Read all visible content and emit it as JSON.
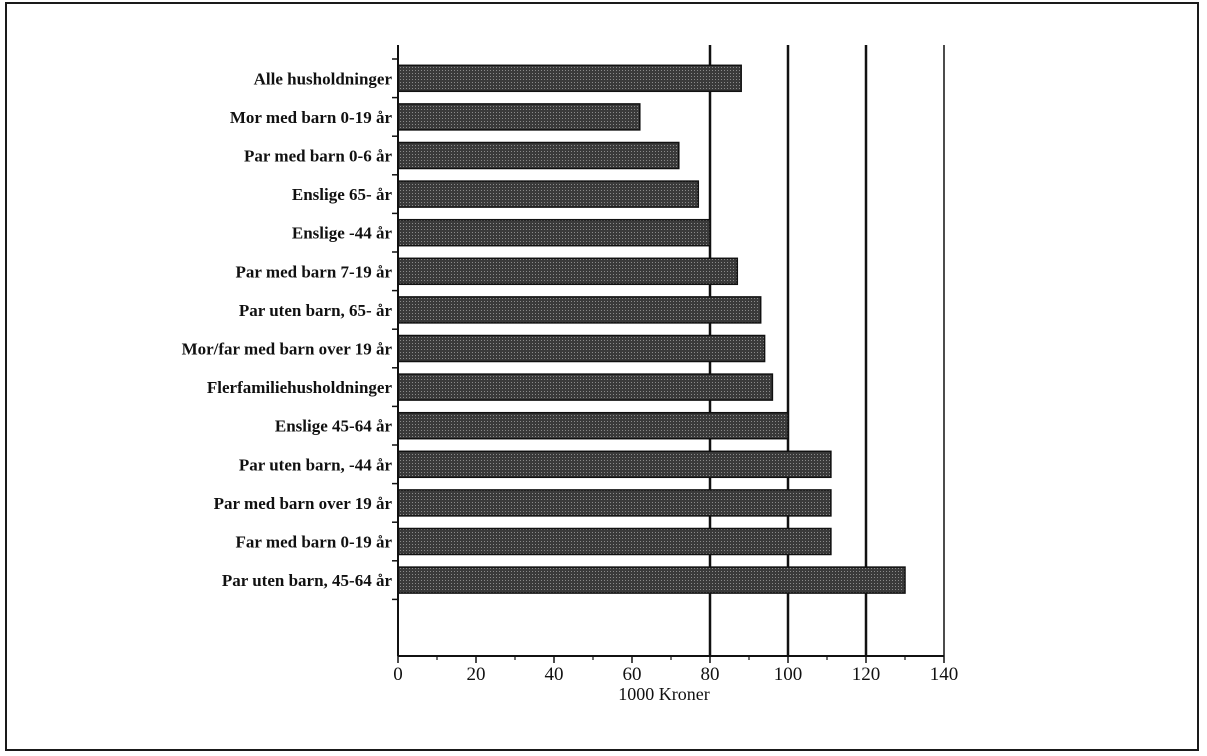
{
  "chart_data": {
    "type": "bar",
    "orientation": "horizontal",
    "title": "",
    "xlabel": "1000 Kroner",
    "ylabel": "",
    "xlim": [
      0,
      140
    ],
    "xticks": [
      0,
      20,
      40,
      60,
      80,
      100,
      120,
      140
    ],
    "categories": [
      "Alle husholdninger",
      "Mor med barn 0-19 år",
      "Par med barn 0-6 år",
      "Enslige 65- år",
      "Enslige -44 år",
      "Par med barn 7-19 år",
      "Par uten barn, 65- år",
      "Mor/far med barn over 19 år",
      "Flerfamiliehusholdninger",
      "Enslige 45-64 år",
      "Par uten barn, -44 år",
      "Par med barn over 19 år",
      "Far med barn 0-19 år",
      "Par uten barn, 45-64 år"
    ],
    "values": [
      88,
      62,
      72,
      77,
      80,
      87,
      93,
      94,
      96,
      100,
      111,
      111,
      111,
      130
    ],
    "grid_lines_at": [
      80,
      100,
      120
    ],
    "legend": "none",
    "colors": {
      "bar_fill": "#4a4a4a",
      "bar_edge": "#111111",
      "axis": "#111111",
      "grid": "#111111"
    }
  }
}
